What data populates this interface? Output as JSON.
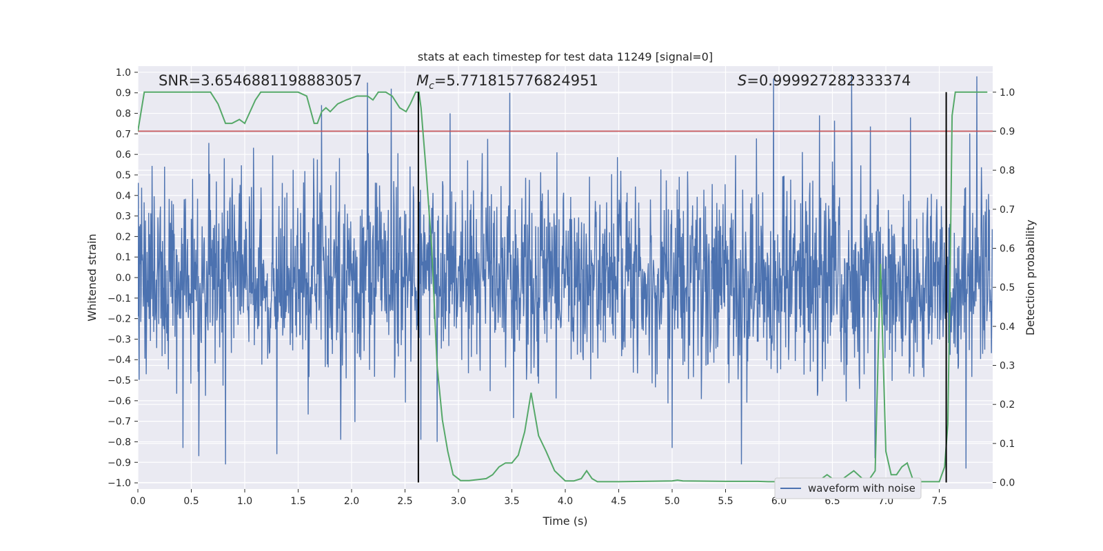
{
  "chart_data": {
    "type": "line",
    "title": "stats at each timestep for test data 11249 [signal=0]",
    "xlabel": "Time (s)",
    "ylabel": "Whitened strain",
    "ylabel_right": "Detection probability",
    "xlim": [
      0.0,
      8.0
    ],
    "ylim": [
      -1.03,
      1.03
    ],
    "ylim_right": [
      -0.0167,
      1.0667
    ],
    "x_ticks": [
      0.0,
      0.5,
      1.0,
      1.5,
      2.0,
      2.5,
      3.0,
      3.5,
      4.0,
      4.5,
      5.0,
      5.5,
      6.0,
      6.5,
      7.0,
      7.5
    ],
    "x_tick_labels": [
      "0.0",
      "0.5",
      "1.0",
      "1.5",
      "2.0",
      "2.5",
      "3.0",
      "3.5",
      "4.0",
      "4.5",
      "5.0",
      "5.5",
      "6.0",
      "6.5",
      "7.0",
      "7.5"
    ],
    "y_ticks": [
      -1.0,
      -0.9,
      -0.8,
      -0.7,
      -0.6,
      -0.5,
      -0.4,
      -0.3,
      -0.2,
      -0.1,
      0.0,
      0.1,
      0.2,
      0.3,
      0.4,
      0.5,
      0.6,
      0.7,
      0.8,
      0.9,
      1.0
    ],
    "y_tick_labels": [
      "−1.0",
      "−0.9",
      "−0.8",
      "−0.7",
      "−0.6",
      "−0.5",
      "−0.4",
      "−0.3",
      "−0.2",
      "−0.1",
      "0.0",
      "0.1",
      "0.2",
      "0.3",
      "0.4",
      "0.5",
      "0.6",
      "0.7",
      "0.8",
      "0.9",
      "1.0"
    ],
    "y_ticks_right": [
      0.0,
      0.1,
      0.2,
      0.3,
      0.4,
      0.5,
      0.6,
      0.7,
      0.8,
      0.9,
      1.0
    ],
    "y_tick_labels_right": [
      "0.0",
      "0.1",
      "0.2",
      "0.3",
      "0.4",
      "0.5",
      "0.6",
      "0.7",
      "0.8",
      "0.9",
      "1.0"
    ],
    "annotations": {
      "snr": "SNR=3.6546881198883057",
      "mc_symbol": "M",
      "mc_sub": "c",
      "mc_value": "=5.771815776824951",
      "s_symbol": "S",
      "s_value": "=0.999927282333374"
    },
    "threshold": {
      "value": 0.9,
      "axis": "right",
      "color": "#c44e52"
    },
    "vlines": [
      2.625,
      7.565
    ],
    "waveform": {
      "name": "waveform with noise",
      "color": "#4c72b0",
      "sample_rate_hz": 256,
      "typical_amplitude": 0.38,
      "notable_peaks": [
        [
          0.25,
          0.54
        ],
        [
          0.42,
          -0.83
        ],
        [
          0.57,
          -0.87
        ],
        [
          0.82,
          -0.91
        ],
        [
          1.3,
          -0.86
        ],
        [
          1.72,
          0.84
        ],
        [
          1.9,
          -0.79
        ],
        [
          2.15,
          0.95
        ],
        [
          2.37,
          0.92
        ],
        [
          2.65,
          -0.79
        ],
        [
          2.8,
          -0.8
        ],
        [
          2.92,
          0.8
        ],
        [
          3.48,
          0.9
        ],
        [
          3.92,
          0.61
        ],
        [
          5.0,
          -0.83
        ],
        [
          5.65,
          -0.91
        ],
        [
          5.95,
          0.97
        ],
        [
          6.38,
          0.79
        ],
        [
          6.68,
          0.99
        ],
        [
          6.9,
          -0.88
        ],
        [
          7.23,
          0.78
        ],
        [
          7.75,
          -0.93
        ],
        [
          7.85,
          0.98
        ]
      ]
    },
    "probability": {
      "name": "Detection probability",
      "color": "#55a868",
      "x": [
        0.0,
        0.06,
        0.11,
        0.2,
        0.3,
        0.4,
        0.5,
        0.6,
        0.68,
        0.75,
        0.82,
        0.88,
        0.95,
        1.0,
        1.05,
        1.1,
        1.15,
        1.2,
        1.3,
        1.4,
        1.5,
        1.58,
        1.65,
        1.68,
        1.72,
        1.76,
        1.8,
        1.87,
        1.95,
        2.05,
        2.1,
        2.15,
        2.2,
        2.25,
        2.32,
        2.38,
        2.45,
        2.51,
        2.55,
        2.6,
        2.63,
        2.65,
        2.7,
        2.75,
        2.8,
        2.85,
        2.9,
        2.95,
        3.02,
        3.1,
        3.2,
        3.26,
        3.32,
        3.38,
        3.44,
        3.5,
        3.56,
        3.62,
        3.68,
        3.75,
        3.82,
        3.9,
        4.0,
        4.08,
        4.15,
        4.2,
        4.25,
        4.3,
        4.5,
        5.0,
        5.05,
        5.1,
        5.5,
        5.8,
        5.9,
        6.1,
        6.3,
        6.4,
        6.45,
        6.5,
        6.55,
        6.6,
        6.65,
        6.7,
        6.78,
        6.85,
        6.9,
        6.95,
        7.0,
        7.05,
        7.1,
        7.15,
        7.2,
        7.25,
        7.3,
        7.35,
        7.5,
        7.55,
        7.58,
        7.6,
        7.62,
        7.65,
        7.7,
        7.8,
        7.95
      ],
      "y": [
        0.9,
        1.0,
        1.0,
        1.0,
        1.0,
        1.0,
        1.0,
        1.0,
        1.0,
        0.97,
        0.92,
        0.92,
        0.93,
        0.92,
        0.95,
        0.98,
        1.0,
        1.0,
        1.0,
        1.0,
        1.0,
        0.99,
        0.92,
        0.92,
        0.95,
        0.96,
        0.95,
        0.97,
        0.98,
        0.99,
        0.99,
        0.99,
        0.98,
        1.0,
        1.0,
        0.99,
        0.96,
        0.95,
        0.97,
        1.0,
        1.0,
        0.96,
        0.79,
        0.6,
        0.3,
        0.16,
        0.08,
        0.02,
        0.005,
        0.005,
        0.008,
        0.01,
        0.02,
        0.04,
        0.05,
        0.05,
        0.07,
        0.13,
        0.23,
        0.12,
        0.08,
        0.03,
        0.004,
        0.004,
        0.01,
        0.03,
        0.01,
        0.002,
        0.002,
        0.004,
        0.006,
        0.004,
        0.003,
        0.003,
        0.002,
        0.002,
        0.002,
        0.01,
        0.02,
        0.01,
        0.005,
        0.01,
        0.02,
        0.03,
        0.01,
        0.01,
        0.03,
        0.56,
        0.08,
        0.02,
        0.02,
        0.04,
        0.05,
        0.01,
        0.002,
        0.002,
        0.002,
        0.04,
        0.15,
        0.5,
        0.94,
        1.0,
        1.0,
        1.0,
        1.0
      ],
      "comment": "probability trace plotted against the right axis"
    },
    "legend": {
      "labels": [
        "waveform with noise"
      ],
      "placement": "lower-right"
    },
    "grid": true
  }
}
